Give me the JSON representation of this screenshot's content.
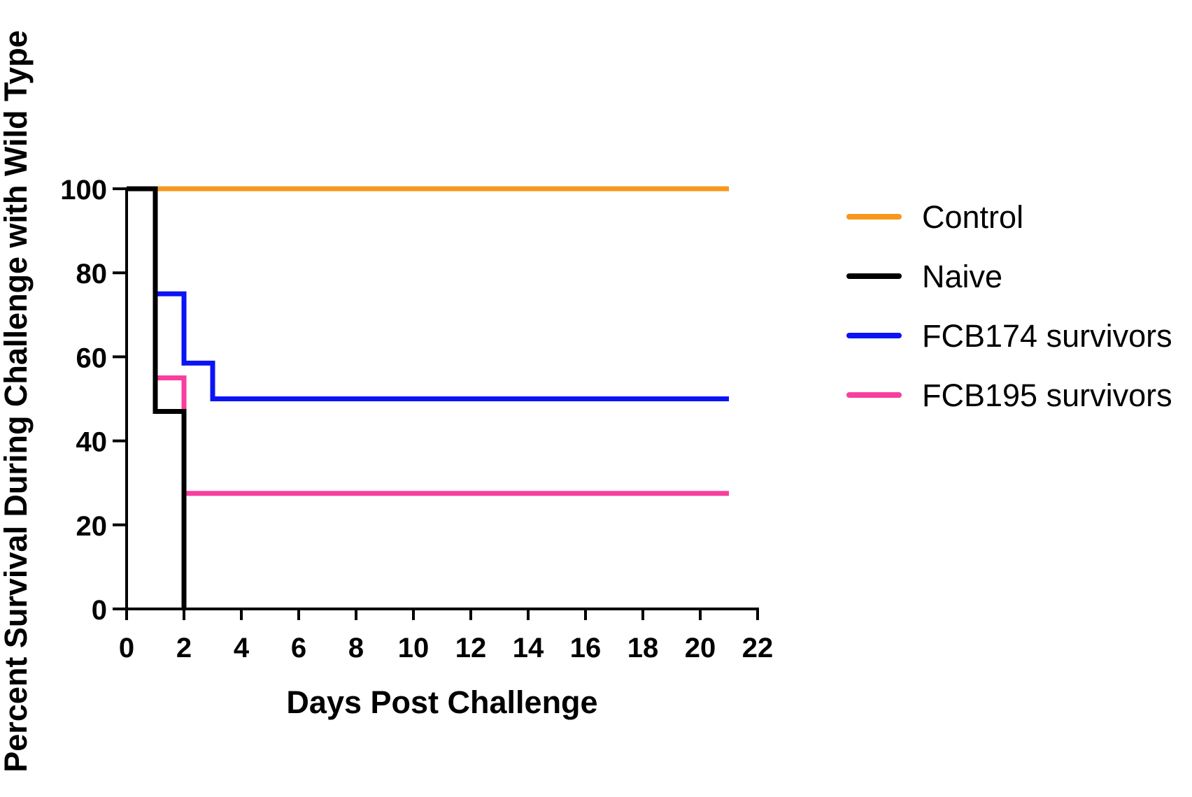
{
  "chart_data": {
    "type": "line",
    "step": true,
    "title": "",
    "xlabel": "Days Post Challenge",
    "ylabel": "Percent Survival During Challenge with Wild Type",
    "xlim": [
      0,
      22
    ],
    "ylim": [
      0,
      100
    ],
    "xticks": [
      "0",
      "2",
      "4",
      "6",
      "8",
      "10",
      "12",
      "14",
      "16",
      "18",
      "20",
      "22"
    ],
    "yticks": [
      "0",
      "20",
      "40",
      "60",
      "80",
      "100"
    ],
    "grid": false,
    "legend_position": "right",
    "series": [
      {
        "name": "Control",
        "color": "#F7981D",
        "points": [
          [
            0,
            100
          ],
          [
            21,
            100
          ]
        ]
      },
      {
        "name": "Naive",
        "color": "#000000",
        "points": [
          [
            0,
            100
          ],
          [
            1,
            100
          ],
          [
            1,
            47
          ],
          [
            2,
            47
          ],
          [
            2,
            0
          ]
        ]
      },
      {
        "name": "FCB174 survivors",
        "color": "#0A14F5",
        "points": [
          [
            1,
            75
          ],
          [
            2,
            75
          ],
          [
            2,
            58.5
          ],
          [
            3,
            58.5
          ],
          [
            3,
            50
          ],
          [
            21,
            50
          ]
        ]
      },
      {
        "name": "FCB195 survivors",
        "color": "#F83E9E",
        "points": [
          [
            1,
            55
          ],
          [
            2,
            55
          ],
          [
            2,
            27.5
          ],
          [
            21,
            27.5
          ]
        ]
      }
    ]
  }
}
